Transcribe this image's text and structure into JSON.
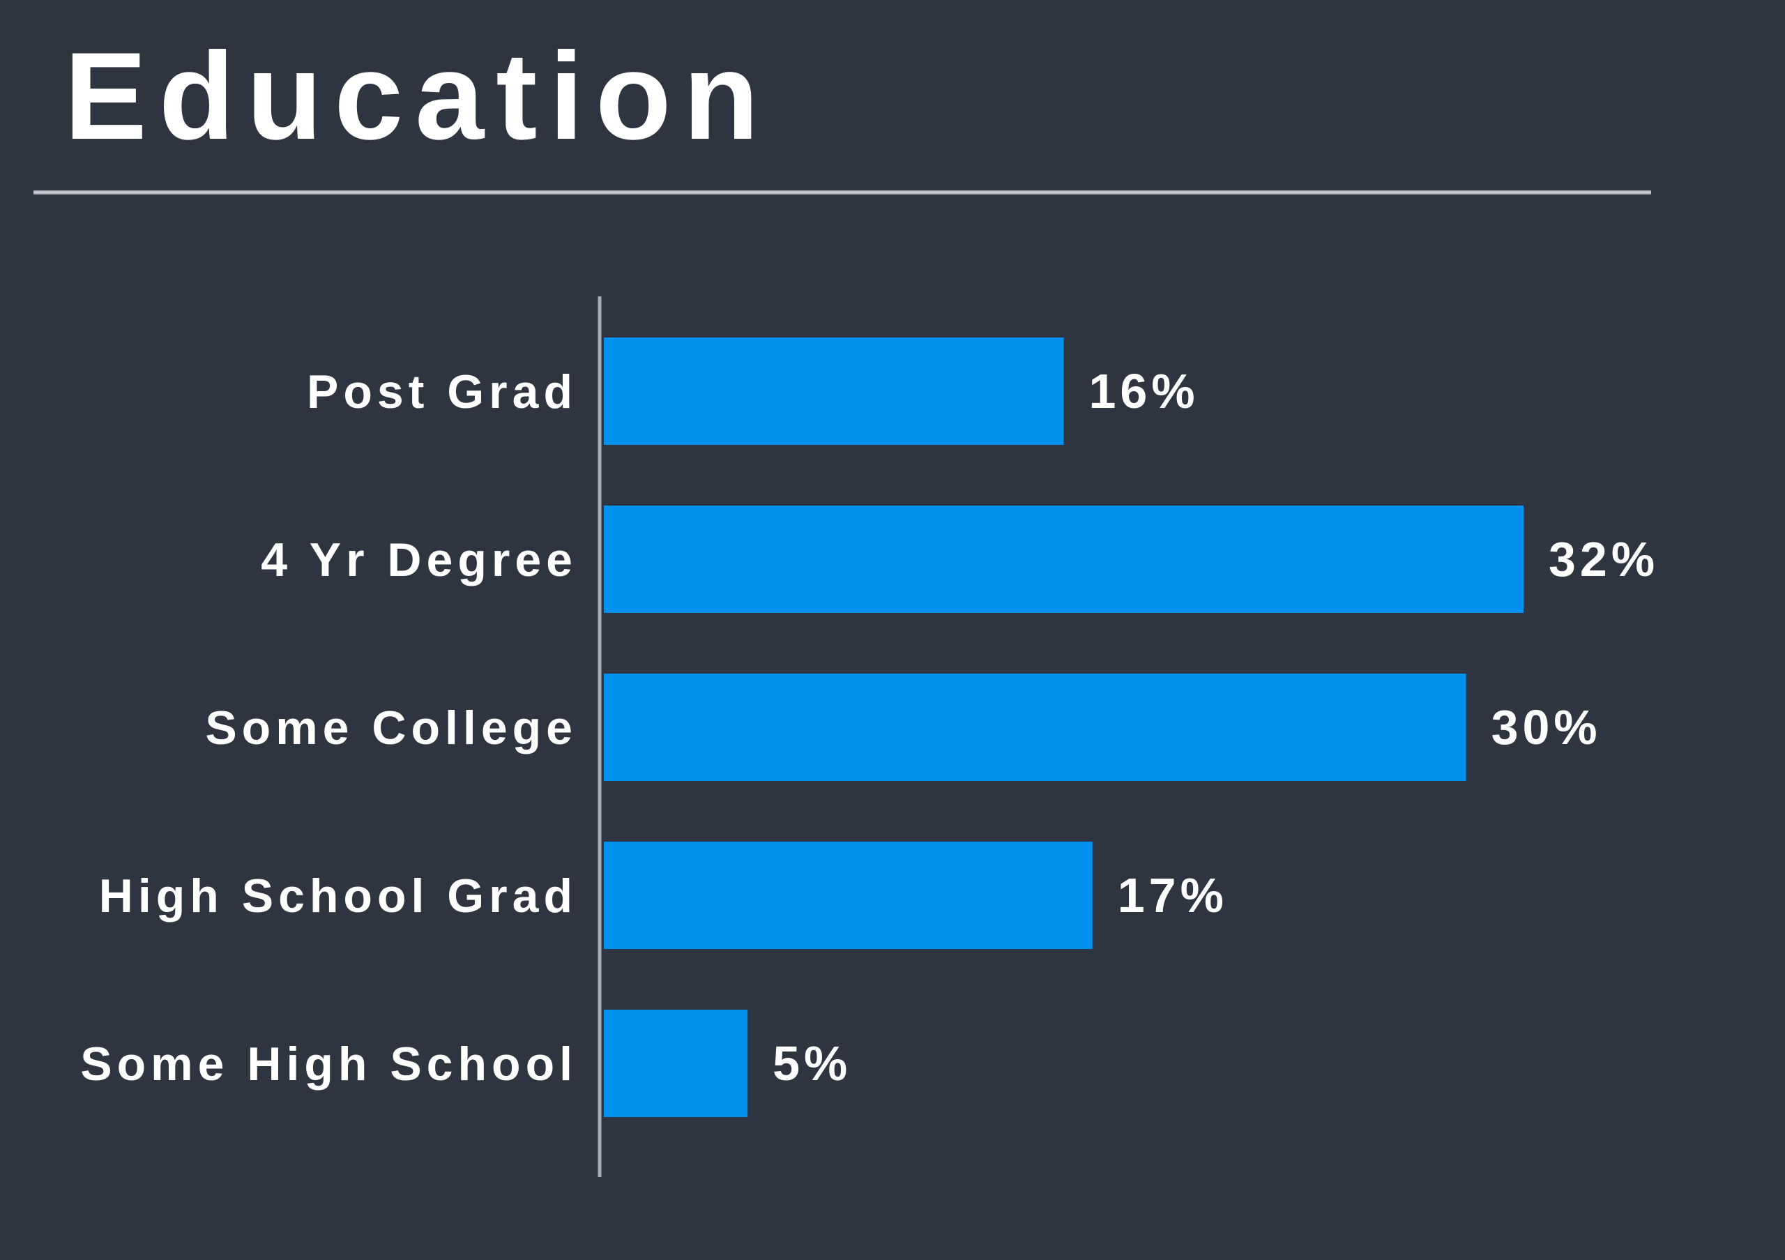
{
  "chart_data": {
    "type": "bar",
    "orientation": "horizontal",
    "title": "Education",
    "categories": [
      "Post Grad",
      "4 Yr Degree",
      "Some College",
      "High School Grad",
      "Some High School"
    ],
    "values": [
      16,
      32,
      30,
      17,
      5
    ],
    "value_labels": [
      "16%",
      "32%",
      "30%",
      "17%",
      "5%"
    ],
    "unit": "%",
    "xlim": [
      0,
      35
    ],
    "grid": false,
    "legend": "none",
    "colors": {
      "bar": "#0391f0",
      "background": "#2e3440",
      "text": "#ffffff",
      "axis": "#a9adb3"
    }
  }
}
